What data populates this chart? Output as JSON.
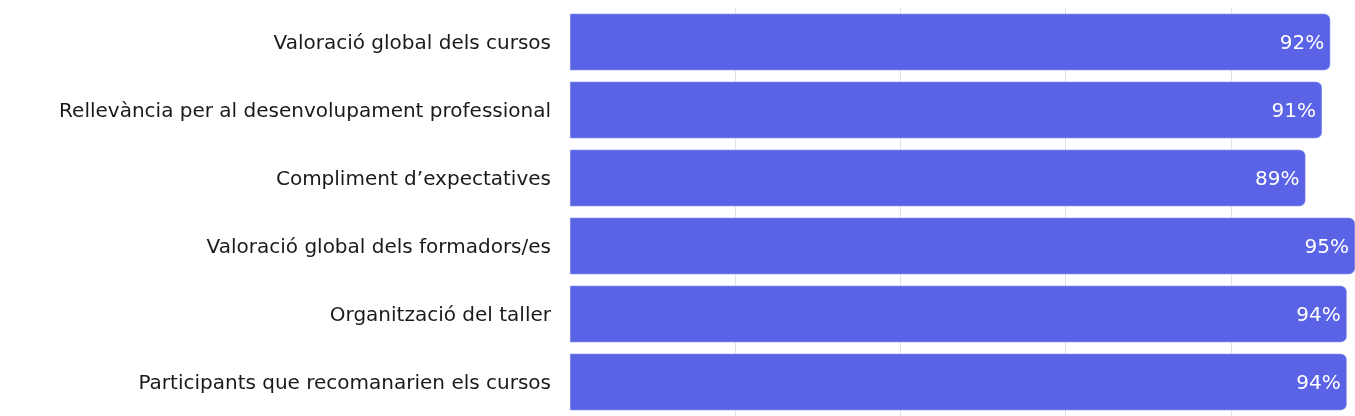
{
  "chart_data": {
    "type": "bar",
    "orientation": "horizontal",
    "categories": [
      "Valoració global dels cursos",
      "Rellevància per al desenvolupament professional",
      "Compliment d’expectatives",
      "Valoració global dels formadors/es",
      "Organització del taller",
      "Participants que recomanarien els cursos"
    ],
    "values": [
      92,
      91,
      89,
      95,
      94,
      94
    ],
    "value_labels": [
      "92%",
      "91%",
      "89%",
      "95%",
      "94%",
      "94%"
    ],
    "color": "#5a62e6",
    "xlim": [
      0,
      95
    ],
    "xticks": [
      {
        "value": 20,
        "label": null
      },
      {
        "value": 40,
        "label": null
      },
      {
        "value": 60,
        "label": null
      },
      {
        "value": 80,
        "label": null
      }
    ],
    "tick_labels": "y",
    "grid": "x"
  }
}
